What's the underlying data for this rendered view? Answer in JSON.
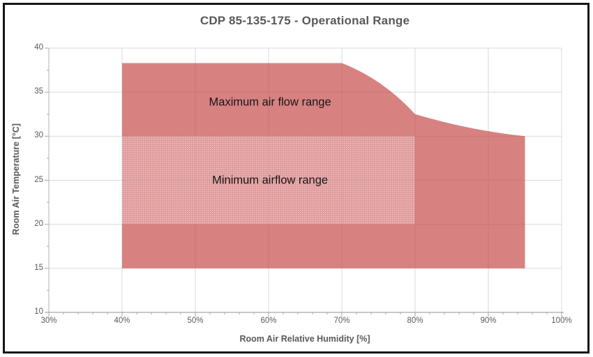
{
  "chart_data": {
    "type": "area",
    "title": "CDP 85-135-175 - Operational Range",
    "xlabel": "Room Air Relative Humidity [%]",
    "ylabel": "Room Air  Temperature [°C]",
    "xlim": [
      30,
      100
    ],
    "ylim": [
      10,
      40
    ],
    "x_tick_values": [
      30,
      40,
      50,
      60,
      70,
      80,
      90,
      100
    ],
    "x_tick_labels": [
      "30%",
      "40%",
      "50%",
      "60%",
      "70%",
      "80%",
      "90%",
      "100%"
    ],
    "y_tick_values": [
      10,
      15,
      20,
      25,
      30,
      35,
      40
    ],
    "y_tick_labels": [
      "10",
      "15",
      "20",
      "25",
      "30",
      "35",
      "40"
    ],
    "x_minor_tick_step": 2,
    "y_minor_tick_step": 2.5,
    "grid": true,
    "legend": "none",
    "series": [
      {
        "name": "operational-envelope",
        "label": "Maximum air flow range",
        "label_pos": [
          60.2,
          33.85
        ],
        "type": "filled-polygon",
        "points": [
          [
            40,
            15
          ],
          [
            40,
            38.3
          ],
          [
            70,
            38.3
          ],
          [
            80,
            32.5
          ],
          [
            95,
            30
          ],
          [
            95,
            15
          ]
        ],
        "smoothed_segments": [
          {
            "from": 2,
            "to": 3,
            "ctrl": [
              0.56,
              0.31
            ]
          },
          {
            "from": 3,
            "to": 4,
            "ctrl": [
              0.51,
              0.75
            ]
          }
        ],
        "fill": "rgba(198,70,70,0.68)"
      },
      {
        "name": "minimum-airflow-zone",
        "label": "Minimum airflow range",
        "label_pos": [
          60.2,
          25.0
        ],
        "type": "patterned-rect",
        "x_range": [
          40,
          80
        ],
        "y_range": [
          20,
          30
        ],
        "fill": "dotted-white-overlay"
      }
    ],
    "colors": {
      "envelope_fill_rendered": "#d88181",
      "min_zone_fill_rendered": "#eb9e9c",
      "grid": "#d9d9d9",
      "axis": "#a6a6a6",
      "tick_text": "#595959",
      "title_text": "#595959",
      "region_label_text": "#161616",
      "frame_border": "#151515"
    }
  }
}
